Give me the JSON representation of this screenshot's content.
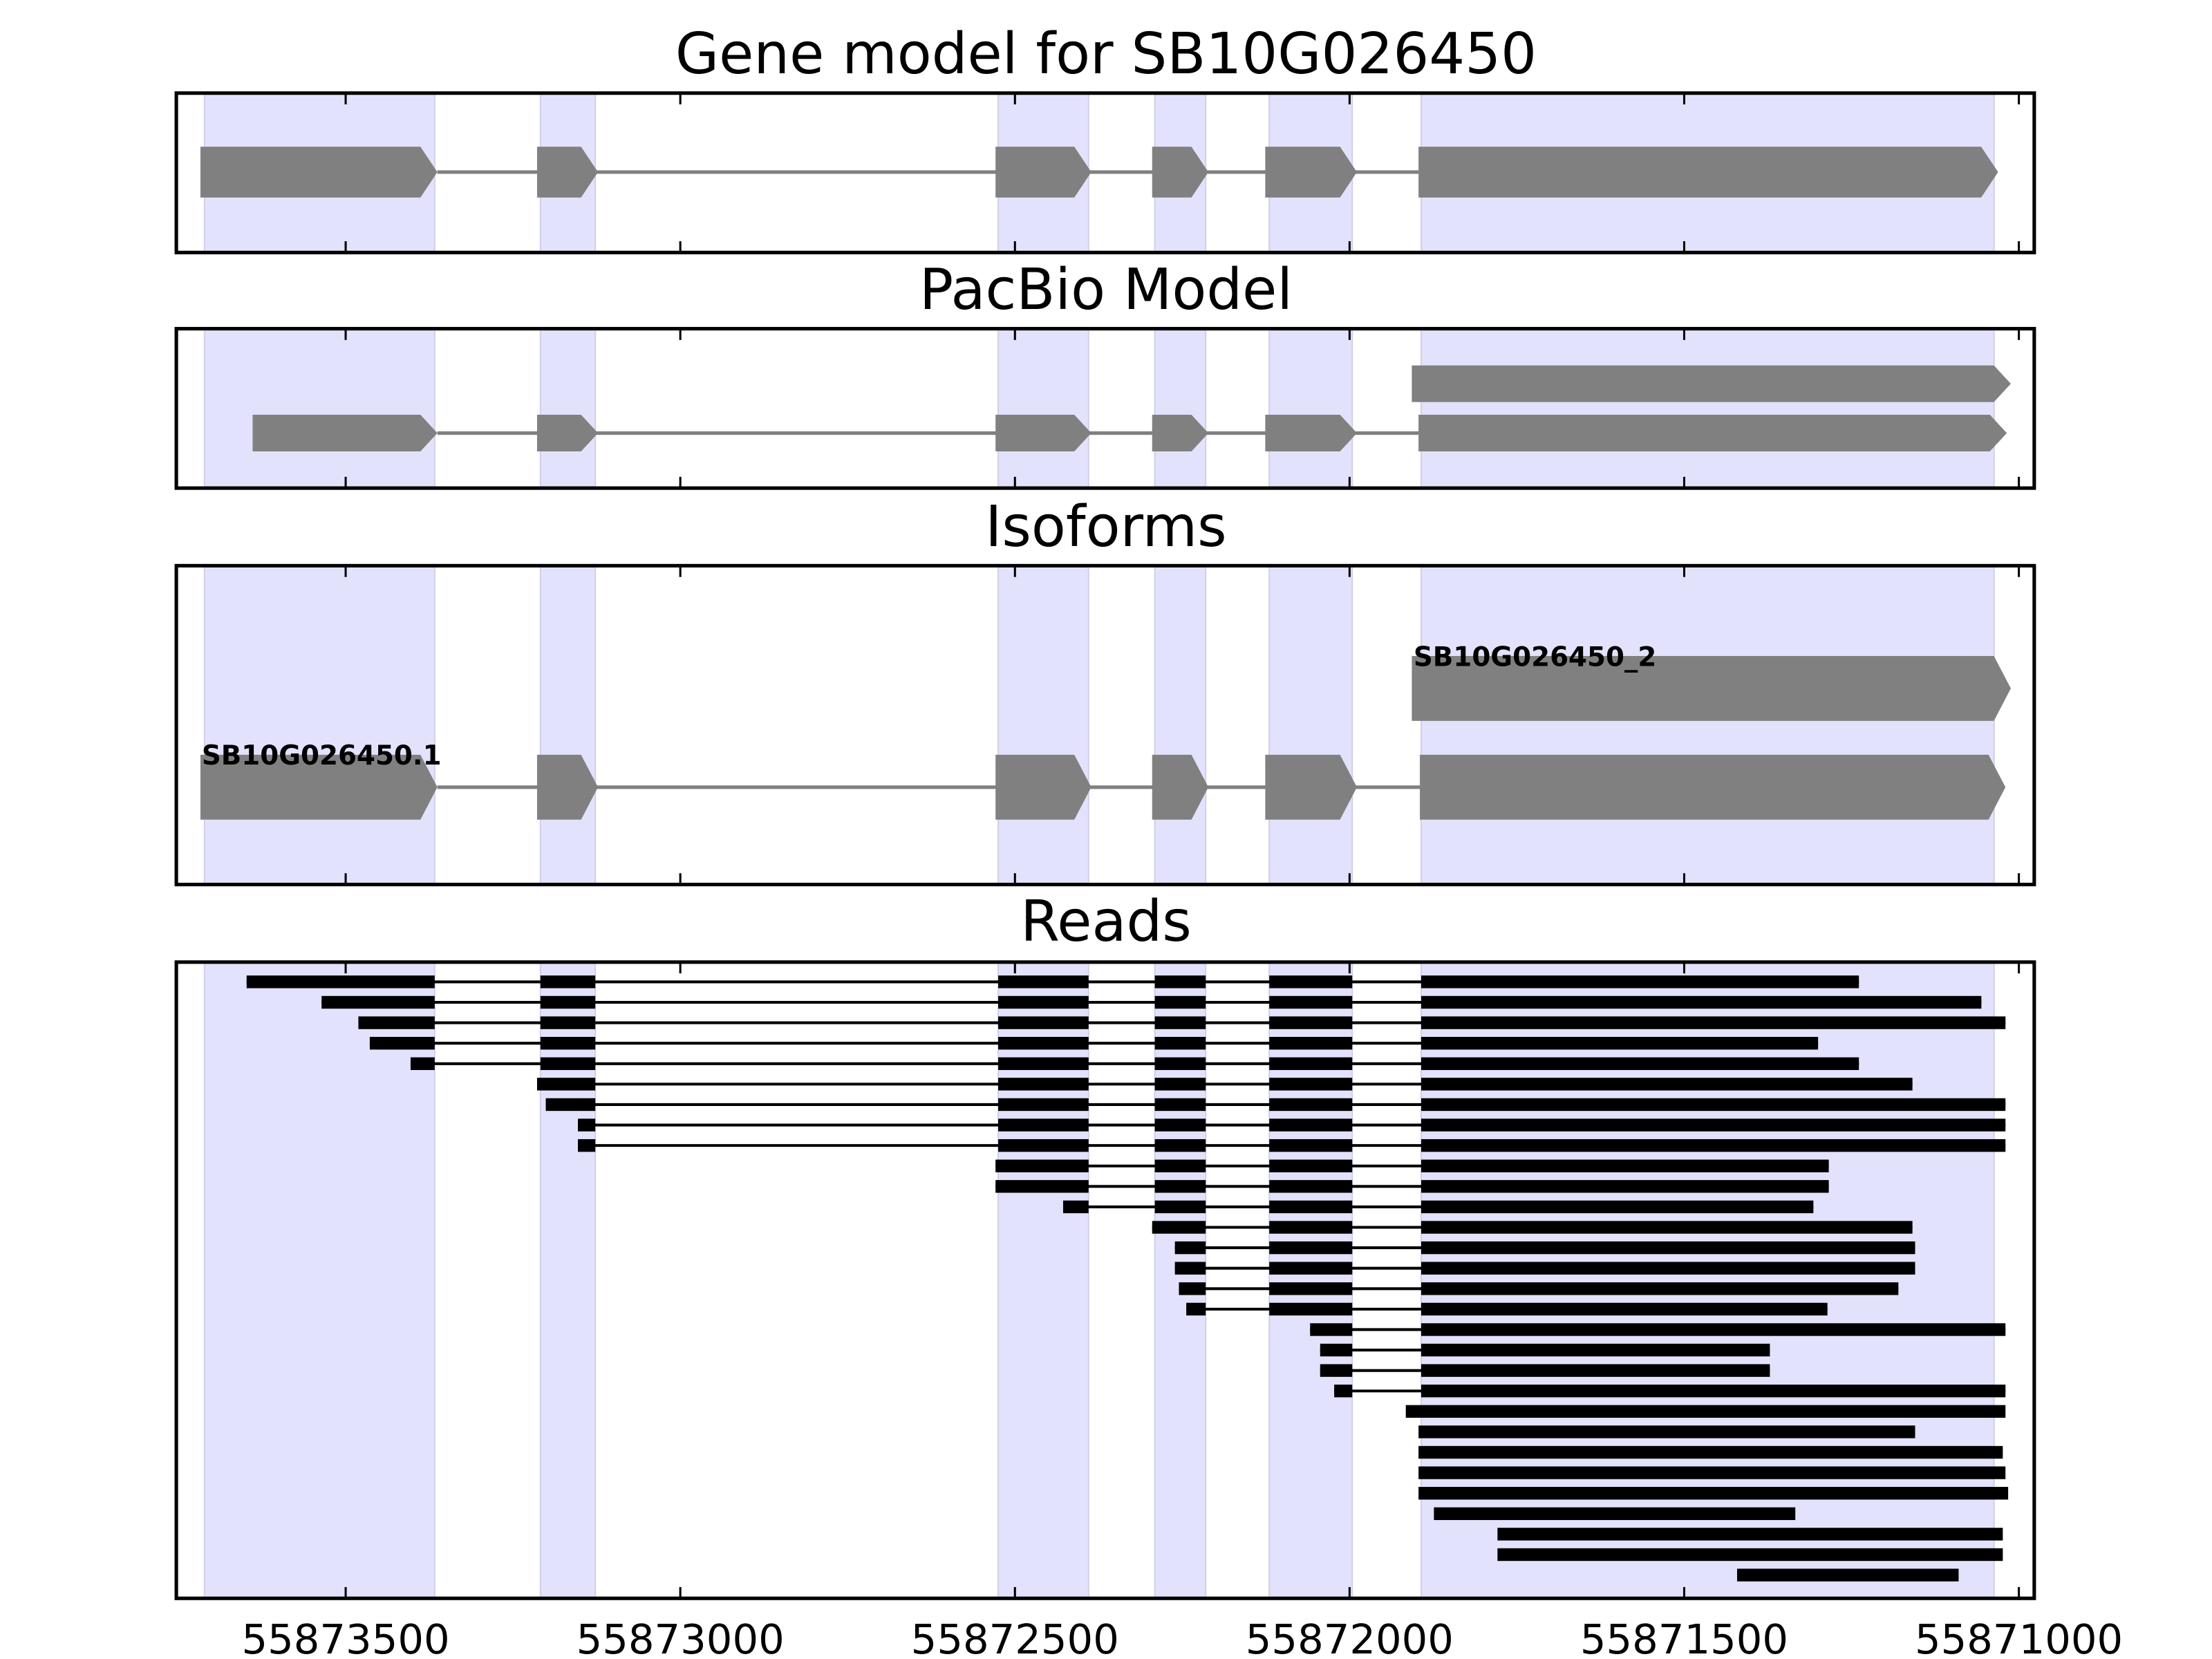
{
  "chart_data": {
    "type": "gene-track",
    "axis": {
      "range": [
        55873753,
        55870977
      ],
      "reversed": true,
      "ticks": [
        55873500,
        55873000,
        55872500,
        55872000,
        55871500,
        55871000
      ],
      "tick_labels": [
        "55873500",
        "55873000",
        "55872500",
        "55872000",
        "55871500",
        "55871000"
      ]
    },
    "exon_regions": [
      [
        55873711,
        55873367
      ],
      [
        55873209,
        55873127
      ],
      [
        55872525,
        55872390
      ],
      [
        55872291,
        55872215
      ],
      [
        55872120,
        55871996
      ],
      [
        55871893,
        55871037
      ]
    ],
    "colors": {
      "shade": "#e2e2fc",
      "shade_edge": "#d0d0e8",
      "model": "#808080",
      "read": "#000000"
    },
    "panels": [
      {
        "title": "Gene model for SB10G026450",
        "transcripts": [
          {
            "label": "",
            "exons": [
              [
                55873717,
                55873363
              ],
              [
                55873214,
                55873123
              ],
              [
                55872529,
                55872386
              ],
              [
                55872295,
                55872211
              ],
              [
                55872126,
                55871989
              ],
              [
                55871897,
                55871031
              ]
            ]
          }
        ]
      },
      {
        "title": "PacBio Model",
        "transcripts": [
          {
            "label": "",
            "exons": [
              [
                55871907,
                55871012
              ]
            ]
          },
          {
            "label": "",
            "exons": [
              [
                55873639,
                55873363
              ],
              [
                55873214,
                55873123
              ],
              [
                55872529,
                55872386
              ],
              [
                55872295,
                55872211
              ],
              [
                55872126,
                55871989
              ],
              [
                55871897,
                55871018
              ]
            ]
          }
        ]
      },
      {
        "title": "Isoforms",
        "transcripts": [
          {
            "label": "SB10G026450_2",
            "exons": [
              [
                55871907,
                55871012
              ]
            ]
          },
          {
            "label": "SB10G026450.1",
            "exons": [
              [
                55873717,
                55873363
              ],
              [
                55873214,
                55873123
              ],
              [
                55872529,
                55872386
              ],
              [
                55872295,
                55872211
              ],
              [
                55872126,
                55871989
              ],
              [
                55871895,
                55871020
              ]
            ]
          }
        ]
      },
      {
        "title": "Reads",
        "reads": [
          [
            55873648,
            55871239
          ],
          [
            55873536,
            55871056
          ],
          [
            55873481,
            55871020
          ],
          [
            55873464,
            55871300
          ],
          [
            55873403,
            55871239
          ],
          [
            55873214,
            55871159
          ],
          [
            55873201,
            55871020
          ],
          [
            55873153,
            55871020
          ],
          [
            55873153,
            55871020
          ],
          [
            55872529,
            55871284
          ],
          [
            55872529,
            55871284
          ],
          [
            55872428,
            55871307
          ],
          [
            55872295,
            55871159
          ],
          [
            55872261,
            55871155
          ],
          [
            55872261,
            55871155
          ],
          [
            55872255,
            55871180
          ],
          [
            55872244,
            55871286
          ],
          [
            55872059,
            55871020
          ],
          [
            55872044,
            55871372
          ],
          [
            55872044,
            55871372
          ],
          [
            55872023,
            55871020
          ],
          [
            55871916,
            55871020
          ],
          [
            55871897,
            55871155
          ],
          [
            55871897,
            55871024
          ],
          [
            55871897,
            55871020
          ],
          [
            55871897,
            55871016
          ],
          [
            55871874,
            55871334
          ],
          [
            55871779,
            55871024
          ],
          [
            55871779,
            55871024
          ],
          [
            55871421,
            55871090
          ]
        ]
      }
    ]
  }
}
